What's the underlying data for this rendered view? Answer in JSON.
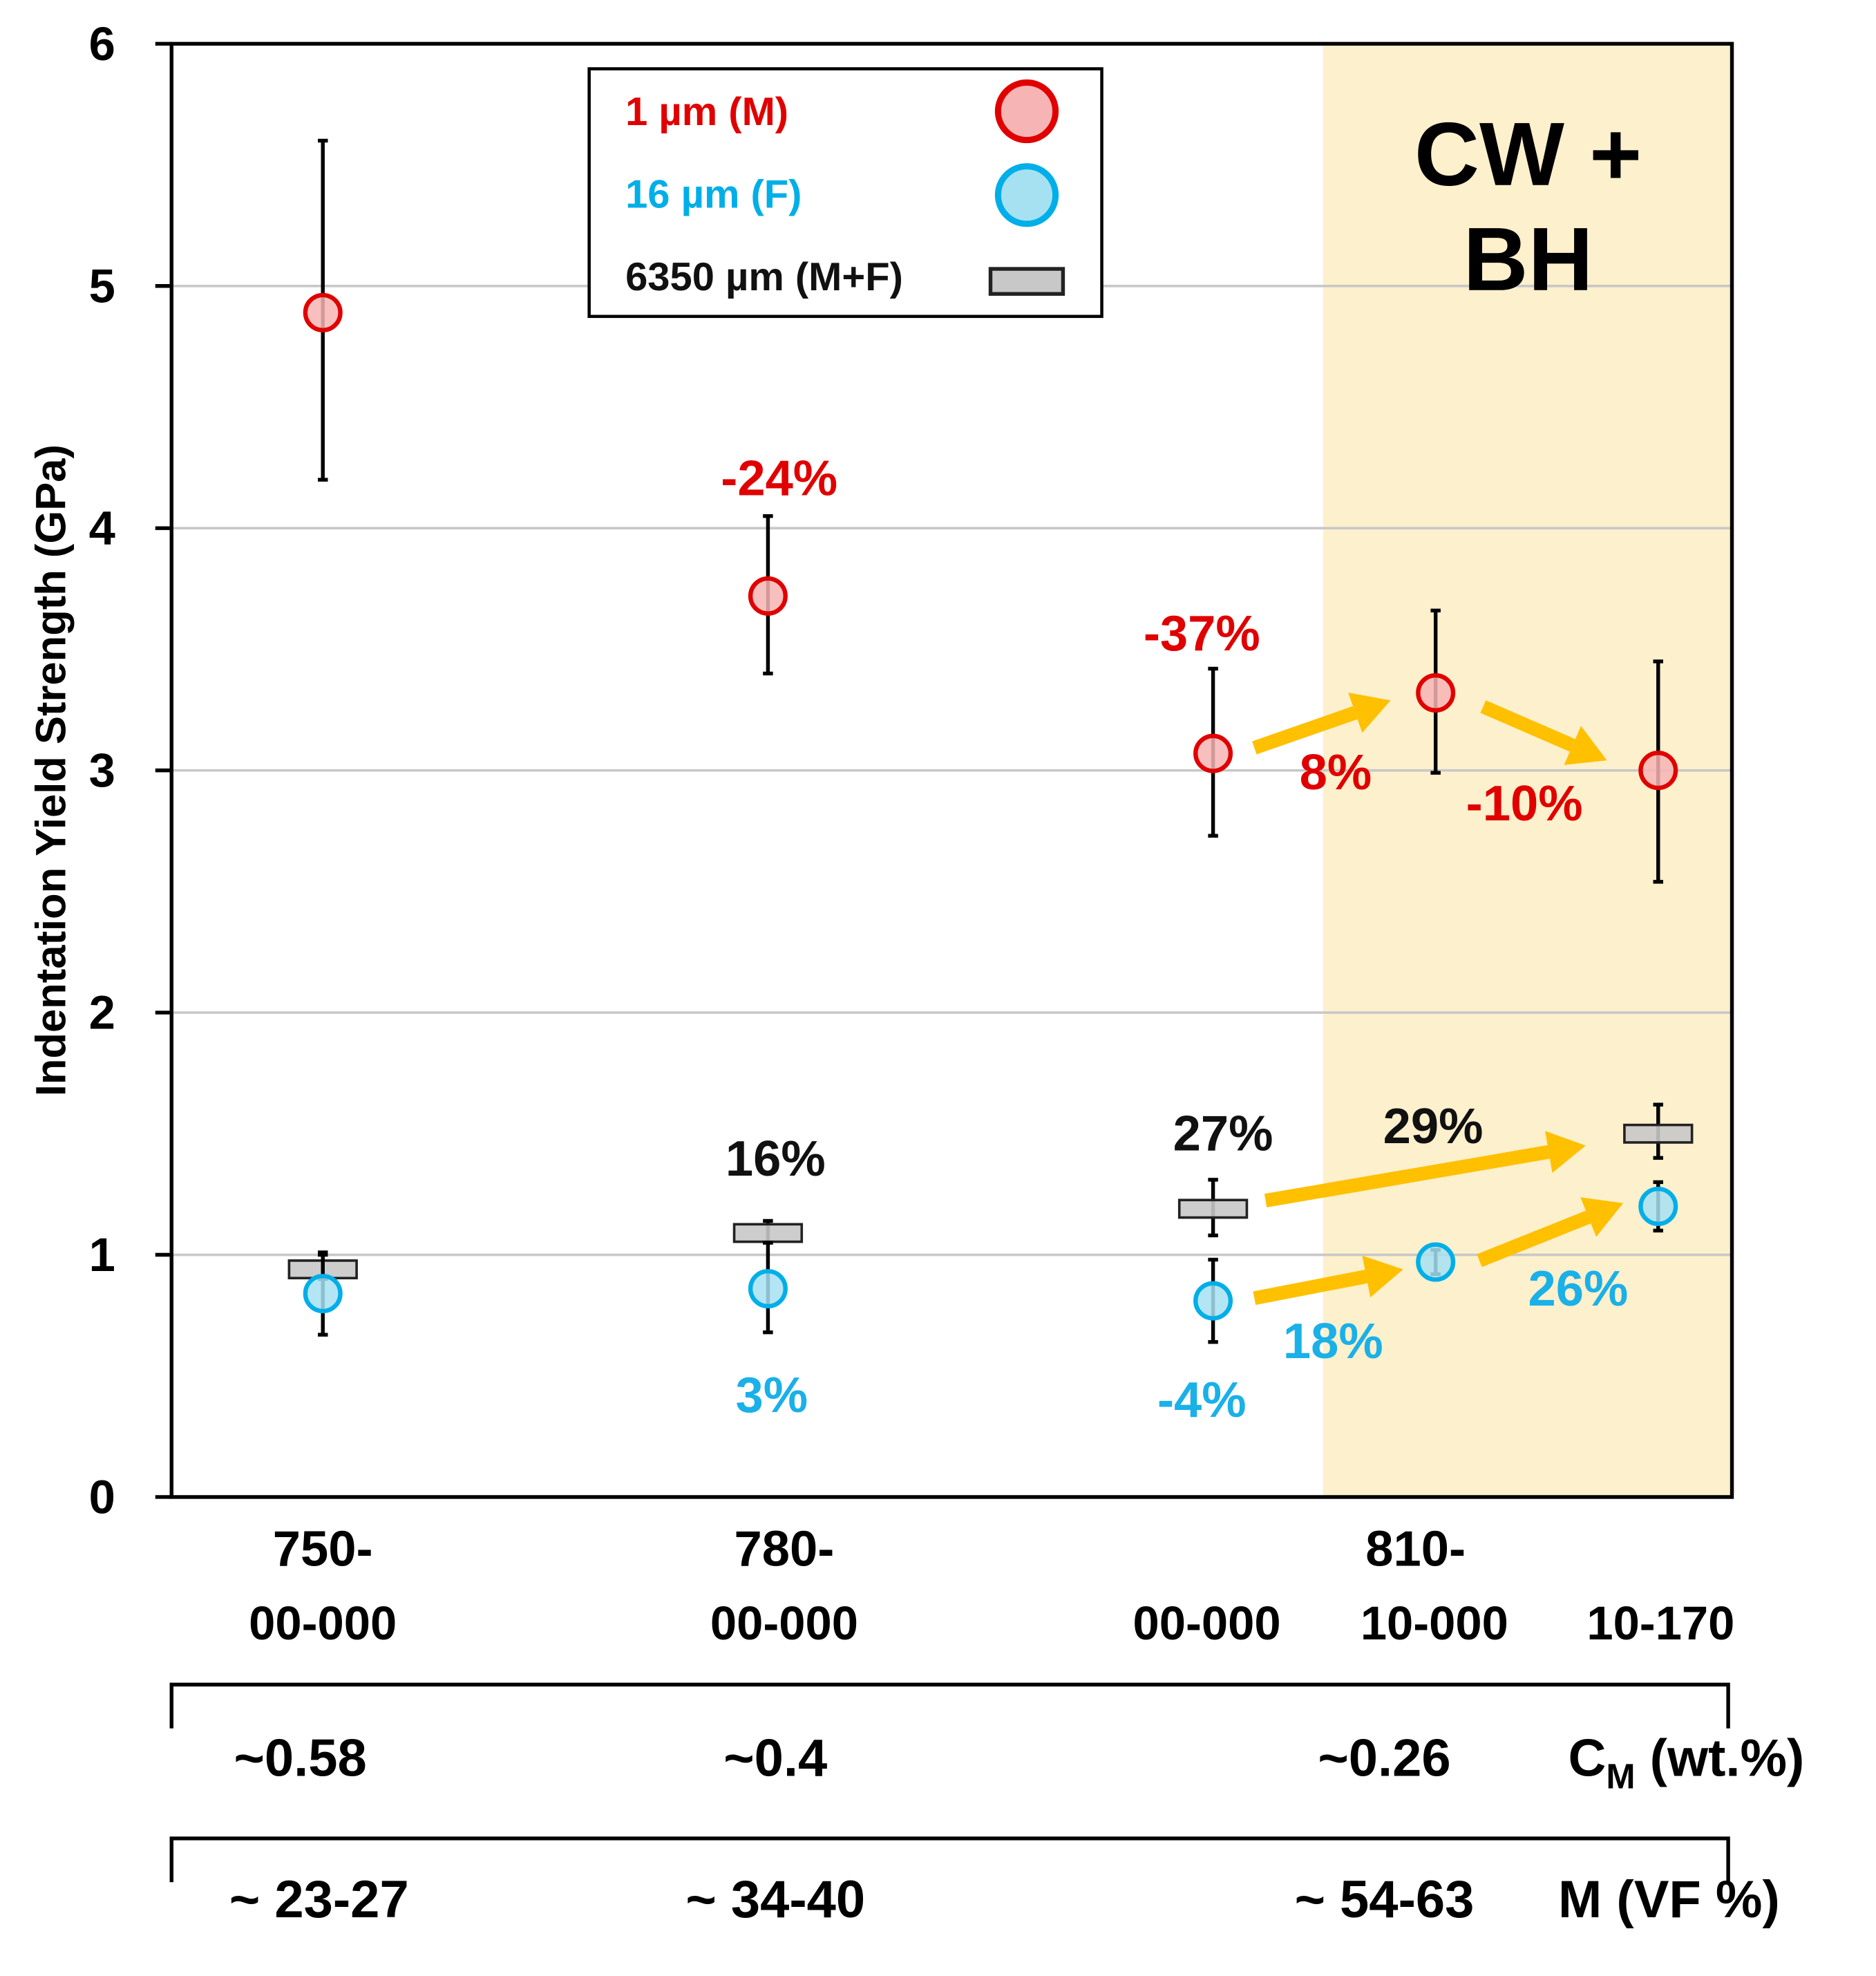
{
  "chart_data": {
    "type": "scatter",
    "title": "",
    "ylabel": "Indentation Yield Strength (GPa)",
    "ylim": [
      0,
      6
    ],
    "yticks": [
      "0",
      "1",
      "2",
      "3",
      "4",
      "5",
      "6"
    ],
    "grid": true,
    "legend_placement": "top-center",
    "shaded_region": {
      "label_line1": "CW +",
      "label_line2": "BH",
      "from_category": 3,
      "color": "#fdf0cc"
    },
    "categories": [
      {
        "line1": "750-",
        "line2": "00-000"
      },
      {
        "line1": "780-",
        "line2": "00-000"
      },
      {
        "line1": "",
        "line2": "00-000"
      },
      {
        "line1": "810-",
        "line2": "10-000"
      },
      {
        "line1": "",
        "line2": "10-170"
      }
    ],
    "group_label_810": "810-",
    "series": [
      {
        "name": "1 µm (M)",
        "marker": "circle",
        "color": "#e00000",
        "fill": "#f7b4b4",
        "values": [
          4.89,
          3.72,
          3.07,
          3.32,
          3.0
        ],
        "err_low": [
          4.2,
          3.4,
          2.73,
          2.99,
          2.54
        ],
        "err_high": [
          5.6,
          4.05,
          3.42,
          3.66,
          3.45
        ]
      },
      {
        "name": "16 µm (F)",
        "marker": "circle",
        "color": "#00aee8",
        "fill": "#a6e1f2",
        "values": [
          0.84,
          0.86,
          0.81,
          0.97,
          1.2
        ],
        "err_low": [
          0.67,
          0.68,
          0.64,
          0.92,
          1.1
        ],
        "err_high": [
          1.0,
          1.05,
          0.98,
          1.02,
          1.3
        ]
      },
      {
        "name": "6350 µm (M+F)",
        "marker": "rect",
        "color": "#222222",
        "fill": "#c8c8c8",
        "values": [
          0.94,
          1.09,
          1.19,
          null,
          1.5
        ],
        "err_low": [
          0.9,
          1.05,
          1.08,
          null,
          1.4
        ],
        "err_high": [
          1.01,
          1.14,
          1.31,
          null,
          1.62
        ]
      }
    ],
    "annotations": [
      {
        "text": "-24%",
        "color": "#e00000"
      },
      {
        "text": "-37%",
        "color": "#e00000"
      },
      {
        "text": "8%",
        "color": "#e00000"
      },
      {
        "text": "-10%",
        "color": "#e00000"
      },
      {
        "text": "16%",
        "color": "#111111"
      },
      {
        "text": "27%",
        "color": "#111111"
      },
      {
        "text": "29%",
        "color": "#111111"
      },
      {
        "text": "3%",
        "color": "#1ab0e8"
      },
      {
        "text": "-4%",
        "color": "#1ab0e8"
      },
      {
        "text": "18%",
        "color": "#1ab0e8"
      },
      {
        "text": "26%",
        "color": "#1ab0e8"
      }
    ],
    "arrow_color": "#ffc000",
    "bottom_rows": [
      {
        "values": [
          "~0.58",
          "~0.4",
          "~0.26"
        ],
        "label": "C",
        "label_sub": "M",
        "label_rest": " (wt.%)"
      },
      {
        "values": [
          "~ 23-27",
          "~ 34-40",
          "~ 54-63"
        ],
        "label": "M (VF %)",
        "label_sub": "",
        "label_rest": ""
      }
    ]
  }
}
